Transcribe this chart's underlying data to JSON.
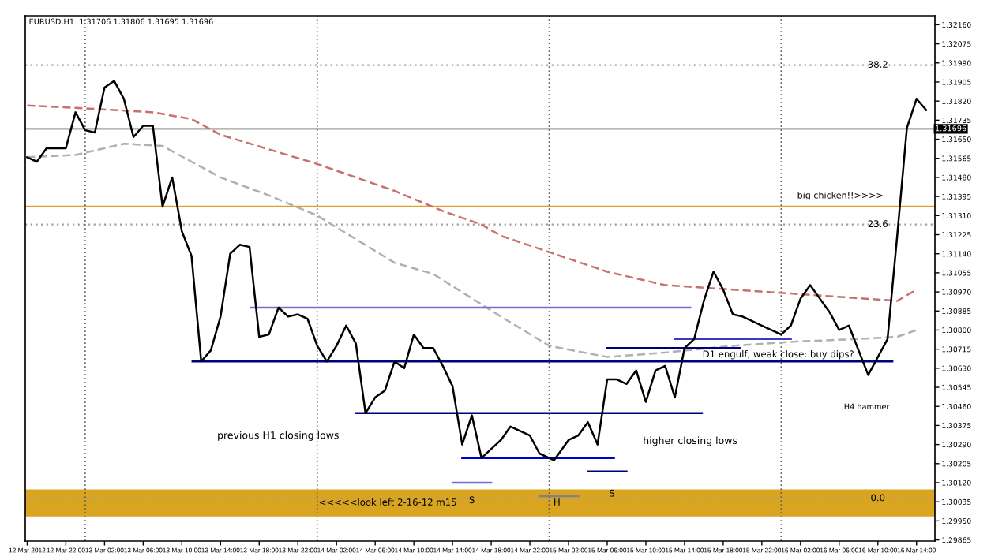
{
  "chart_data": {
    "type": "line",
    "annotations": [
      "EURUSD,H1  1.31706 1.31806 1.31695 1.31696",
      "previous H1 closing lows",
      "higher closing lows",
      "H4 hammer",
      "big chicken!!>>>>",
      {
        "text": "D1 engulf, weak close: buy dips?",
        "x": "2012-03-15T23:42",
        "y": 1.3069
      },
      {
        "text": "S",
        "x": "2012-03-14T16:00",
        "y": 1.3004
      },
      {
        "text": "S",
        "x": "2012-03-15T06:30",
        "y": 1.3007
      },
      {
        "text": "H",
        "x": "2012-03-15T00:48",
        "y": 1.3003
      },
      {
        "text": "<<<<<look left 2-16-12 m15",
        "x": "2012-03-14T07:18",
        "y": 1.3003
      },
      {
        "text": "38.2",
        "x": "2012-03-16T10:00",
        "y": 1.3198
      },
      {
        "text": "23.6",
        "x": "2012-03-16T10:00",
        "y": 1.3127
      },
      {
        "text": "0.0",
        "x": "2012-03-16T10:00",
        "y": 1.3005
      }
    ],
    "series": [
      {
        "color": "#c87070",
        "line_style": "dashed",
        "x": [
          "2012-03-12T18:00",
          "2012-03-12T23:00",
          "2012-03-13T07:00",
          "2012-03-13T11:00",
          "2012-03-13T14:00",
          "2012-03-14T00:00",
          "2012-03-14T08:00",
          "2012-03-14T13:00",
          "2012-03-14T17:00",
          "2012-03-14T19:00",
          "2012-03-15T06:00",
          "2012-03-15T12:00",
          "2012-03-15T19:00",
          "2012-03-16T02:00",
          "2012-03-16T12:00",
          "2012-03-16T14:00"
        ],
        "values": [
          1.318,
          1.3179,
          1.3177,
          1.3174,
          1.3167,
          1.3154,
          1.3142,
          1.3133,
          1.3127,
          1.3122,
          1.3106,
          1.31,
          1.3098,
          1.3096,
          1.3093,
          1.3098
        ]
      },
      {
        "color": "#b0b0b0",
        "line_style": "dashed",
        "x": [
          "2012-03-12T18:00",
          "2012-03-12T23:00",
          "2012-03-13T04:00",
          "2012-03-13T08:00",
          "2012-03-13T11:00",
          "2012-03-13T14:00",
          "2012-03-13T19:00",
          "2012-03-14T00:00",
          "2012-03-14T08:00",
          "2012-03-14T12:00",
          "2012-03-14T19:00",
          "2012-03-15T00:00",
          "2012-03-15T06:00",
          "2012-03-15T12:00",
          "2012-03-15T19:00",
          "2012-03-16T02:00",
          "2012-03-16T08:00",
          "2012-03-16T12:00",
          "2012-03-16T14:00"
        ],
        "values": [
          1.3157,
          1.3158,
          1.3163,
          1.3162,
          1.3155,
          1.3148,
          1.314,
          1.3131,
          1.311,
          1.3105,
          1.3086,
          1.3073,
          1.3068,
          1.307,
          1.3073,
          1.3075,
          1.3076,
          1.3077,
          1.308
        ]
      },
      {
        "color": "#7070d0",
        "x": [
          "2012-03-13T17:06",
          "2012-03-15T14:36"
        ],
        "values": [
          1.309,
          1.309
        ]
      },
      {
        "color": "#00007a",
        "x": [
          "2012-03-13T11:06",
          "2012-03-16T11:30"
        ],
        "values": [
          1.3066,
          1.3066
        ]
      },
      {
        "color": "#00007a",
        "x": [
          "2012-03-14T04:00",
          "2012-03-15T15:48"
        ],
        "values": [
          1.3043,
          1.3043
        ]
      },
      {
        "color": "#0000cc",
        "x": [
          "2012-03-14T15:00",
          "2012-03-15T06:42"
        ],
        "values": [
          1.3023,
          1.3023
        ]
      },
      {
        "color": "#7070d0",
        "x": [
          "2012-03-14T14:00",
          "2012-03-14T18:00"
        ],
        "values": [
          1.3012,
          1.3012
        ]
      },
      {
        "color": "#808080",
        "x": [
          "2012-03-14T23:00",
          "2012-03-15T03:00"
        ],
        "values": [
          1.3006,
          1.3006
        ]
      },
      {
        "color": "#00007a",
        "x": [
          "2012-03-15T04:00",
          "2012-03-15T08:00"
        ],
        "values": [
          1.3017,
          1.3017
        ]
      },
      {
        "color": "#3a3ac0",
        "x": [
          "2012-03-15T13:00",
          "2012-03-16T01:00"
        ],
        "values": [
          1.3076,
          1.3076
        ]
      },
      {
        "color": "#00007a",
        "x": [
          "2012-03-15T06:00",
          "2012-03-15T19:42"
        ],
        "values": [
          1.3072,
          1.3072
        ]
      },
      {
        "color": "#000000",
        "x": [
          "2012-03-12T18:00",
          "2012-03-12T19:00",
          "2012-03-12T20:00",
          "2012-03-12T22:00",
          "2012-03-12T23:00",
          "2012-03-13T00:00",
          "2012-03-13T01:00",
          "2012-03-13T02:00",
          "2012-03-13T03:00",
          "2012-03-13T04:00",
          "2012-03-13T05:00",
          "2012-03-13T06:00",
          "2012-03-13T07:00",
          "2012-03-13T08:00",
          "2012-03-13T09:00",
          "2012-03-13T10:00",
          "2012-03-13T11:00",
          "2012-03-13T12:00",
          "2012-03-13T13:00",
          "2012-03-13T14:00",
          "2012-03-13T15:00",
          "2012-03-13T16:00",
          "2012-03-13T17:00",
          "2012-03-13T18:00",
          "2012-03-13T19:00",
          "2012-03-13T20:00",
          "2012-03-13T21:00",
          "2012-03-13T22:00",
          "2012-03-13T23:00",
          "2012-03-14T00:00",
          "2012-03-14T01:00",
          "2012-03-14T02:00",
          "2012-03-14T03:00",
          "2012-03-14T04:00",
          "2012-03-14T05:00",
          "2012-03-14T06:00",
          "2012-03-14T07:00",
          "2012-03-14T08:00",
          "2012-03-14T09:00",
          "2012-03-14T10:00",
          "2012-03-14T11:00",
          "2012-03-14T12:00",
          "2012-03-14T13:00",
          "2012-03-14T14:00",
          "2012-03-14T15:00",
          "2012-03-14T16:00",
          "2012-03-14T17:00",
          "2012-03-14T19:00",
          "2012-03-14T20:00",
          "2012-03-14T22:00",
          "2012-03-14T23:00",
          "2012-03-15T00:30",
          "2012-03-15T02:00",
          "2012-03-15T03:00",
          "2012-03-15T04:00",
          "2012-03-15T05:00",
          "2012-03-15T06:00",
          "2012-03-15T07:00",
          "2012-03-15T08:00",
          "2012-03-15T09:00",
          "2012-03-15T10:00",
          "2012-03-15T11:00",
          "2012-03-15T12:00",
          "2012-03-15T13:00",
          "2012-03-15T14:00",
          "2012-03-15T15:00",
          "2012-03-15T16:00",
          "2012-03-15T17:00",
          "2012-03-15T18:00",
          "2012-03-15T19:00",
          "2012-03-15T20:00",
          "2012-03-15T21:00",
          "2012-03-15T22:00",
          "2012-03-16T00:00",
          "2012-03-16T01:00",
          "2012-03-16T02:00",
          "2012-03-16T03:00",
          "2012-03-16T04:00",
          "2012-03-16T05:00",
          "2012-03-16T06:00",
          "2012-03-16T07:00",
          "2012-03-16T09:00",
          "2012-03-16T11:00",
          "2012-03-16T12:00",
          "2012-03-16T13:00",
          "2012-03-16T14:00",
          "2012-03-16T15:00"
        ],
        "values": [
          1.3157,
          1.3155,
          1.3161,
          1.3161,
          1.3177,
          1.3169,
          1.3168,
          1.3188,
          1.3191,
          1.3183,
          1.3166,
          1.3171,
          1.3171,
          1.3135,
          1.3148,
          1.3124,
          1.3113,
          1.3066,
          1.3071,
          1.3086,
          1.3114,
          1.3118,
          1.3117,
          1.3077,
          1.3078,
          1.309,
          1.3086,
          1.3087,
          1.3085,
          1.3073,
          1.3066,
          1.3073,
          1.3082,
          1.3074,
          1.3043,
          1.305,
          1.3053,
          1.3066,
          1.3063,
          1.3078,
          1.3072,
          1.3072,
          1.3064,
          1.3055,
          1.3029,
          1.3042,
          1.3023,
          1.3031,
          1.3037,
          1.3033,
          1.3025,
          1.3022,
          1.3031,
          1.3033,
          1.3039,
          1.3029,
          1.3058,
          1.3058,
          1.3056,
          1.3062,
          1.3048,
          1.3062,
          1.3064,
          1.305,
          1.3072,
          1.3076,
          1.3093,
          1.3106,
          1.3098,
          1.3087,
          1.3086,
          1.3084,
          1.3082,
          1.3078,
          1.3082,
          1.3094,
          1.31,
          1.3094,
          1.3088,
          1.308,
          1.3082,
          1.306,
          1.3076,
          1.3122,
          1.317,
          1.3183,
          1.3178
        ]
      }
    ],
    "ref_lines": [
      {
        "axis": "y",
        "value": 1.3135,
        "color": "#e0a030"
      },
      {
        "axis": "y",
        "value": 1.31696,
        "label": "1.31696",
        "color": "#a0a0a0"
      },
      {
        "axis": "y",
        "value": 1.3198,
        "color": "#a0a0a0",
        "line_style": "dotted"
      },
      {
        "axis": "y",
        "value": 1.3127,
        "color": "#a0a0a0",
        "line_style": "dotted"
      },
      {
        "axis": "y",
        "value": 1.3005,
        "color": "#a0a0a0",
        "line_style": "dotted"
      },
      {
        "axis": "x",
        "value": "2012-03-13T00:00",
        "color": "#606060",
        "line_style": "dotted"
      },
      {
        "axis": "x",
        "value": "2012-03-14T00:00",
        "color": "#606060",
        "line_style": "dotted"
      },
      {
        "axis": "x",
        "value": "2012-03-15T00:00",
        "color": "#606060",
        "line_style": "dotted"
      },
      {
        "axis": "x",
        "value": "2012-03-16T00:00",
        "color": "#606060",
        "line_style": "dotted"
      }
    ],
    "bands": [
      {
        "axis": "y",
        "from": 1.2997,
        "to": 1.3009,
        "color": "#d9a520"
      }
    ],
    "xlim": [
      "2012-03-12T17:48",
      "2012-03-16T15:54"
    ],
    "ylim": [
      1.2986,
      1.322
    ],
    "xticks": [
      {
        "value": "2012-03-12T18:00",
        "label": "12 Mar 2012"
      },
      {
        "value": "2012-03-12T22:00",
        "label": "12 Mar 22:00"
      },
      {
        "value": "2012-03-13T02:00",
        "label": "13 Mar 02:00"
      },
      {
        "value": "2012-03-13T06:00",
        "label": "13 Mar 06:00"
      },
      {
        "value": "2012-03-13T10:00",
        "label": "13 Mar 10:00"
      },
      {
        "value": "2012-03-13T14:00",
        "label": "13 Mar 14:00"
      },
      {
        "value": "2012-03-13T18:00",
        "label": "13 Mar 18:00"
      },
      {
        "value": "2012-03-13T22:00",
        "label": "13 Mar 22:00"
      },
      {
        "value": "2012-03-14T02:00",
        "label": "14 Mar 02:00"
      },
      {
        "value": "2012-03-14T06:00",
        "label": "14 Mar 06:00"
      },
      {
        "value": "2012-03-14T10:00",
        "label": "14 Mar 10:00"
      },
      {
        "value": "2012-03-14T14:00",
        "label": "14 Mar 14:00"
      },
      {
        "value": "2012-03-14T18:00",
        "label": "14 Mar 18:00"
      },
      {
        "value": "2012-03-14T22:00",
        "label": "14 Mar 22:00"
      },
      {
        "value": "2012-03-15T02:00",
        "label": "15 Mar 02:00"
      },
      {
        "value": "2012-03-15T06:00",
        "label": "15 Mar 06:00"
      },
      {
        "value": "2012-03-15T10:00",
        "label": "15 Mar 10:00"
      },
      {
        "value": "2012-03-15T14:00",
        "label": "15 Mar 14:00"
      },
      {
        "value": "2012-03-15T18:00",
        "label": "15 Mar 18:00"
      },
      {
        "value": "2012-03-15T22:00",
        "label": "15 Mar 22:00"
      },
      {
        "value": "2012-03-16T02:00",
        "label": "16 Mar 02:00"
      },
      {
        "value": "2012-03-16T06:00",
        "label": "16 Mar 06:00"
      },
      {
        "value": "2012-03-16T10:00",
        "label": "16 Mar 10:00"
      },
      {
        "value": "2012-03-16T14:00",
        "label": "16 Mar 14:00"
      }
    ],
    "yticks": [
      {
        "value": 1.29865,
        "label": "1.29865"
      },
      {
        "value": 1.2995,
        "label": "1.29950"
      },
      {
        "value": 1.30035,
        "label": "1.30035"
      },
      {
        "value": 1.3012,
        "label": "1.30120"
      },
      {
        "value": 1.30205,
        "label": "1.30205"
      },
      {
        "value": 1.3029,
        "label": "1.30290"
      },
      {
        "value": 1.30375,
        "label": "1.30375"
      },
      {
        "value": 1.3046,
        "label": "1.30460"
      },
      {
        "value": 1.30545,
        "label": "1.30545"
      },
      {
        "value": 1.3063,
        "label": "1.30630"
      },
      {
        "value": 1.30715,
        "label": "1.30715"
      },
      {
        "value": 1.308,
        "label": "1.30800"
      },
      {
        "value": 1.30885,
        "label": "1.30885"
      },
      {
        "value": 1.3097,
        "label": "1.30970"
      },
      {
        "value": 1.31055,
        "label": "1.31055"
      },
      {
        "value": 1.3114,
        "label": "1.31140"
      },
      {
        "value": 1.31225,
        "label": "1.31225"
      },
      {
        "value": 1.3131,
        "label": "1.31310"
      },
      {
        "value": 1.31395,
        "label": "1.31395"
      },
      {
        "value": 1.3148,
        "label": "1.31480"
      },
      {
        "value": 1.31565,
        "label": "1.31565"
      },
      {
        "value": 1.3165,
        "label": "1.31650"
      },
      {
        "value": 1.31735,
        "label": "1.31735"
      },
      {
        "value": 1.3182,
        "label": "1.31820"
      },
      {
        "value": 1.31905,
        "label": "1.31905"
      },
      {
        "value": 1.3199,
        "label": "1.31990"
      },
      {
        "value": 1.32075,
        "label": "1.32075"
      },
      {
        "value": 1.3216,
        "label": "1.32160"
      }
    ],
    "grid": false,
    "legend": false
  }
}
